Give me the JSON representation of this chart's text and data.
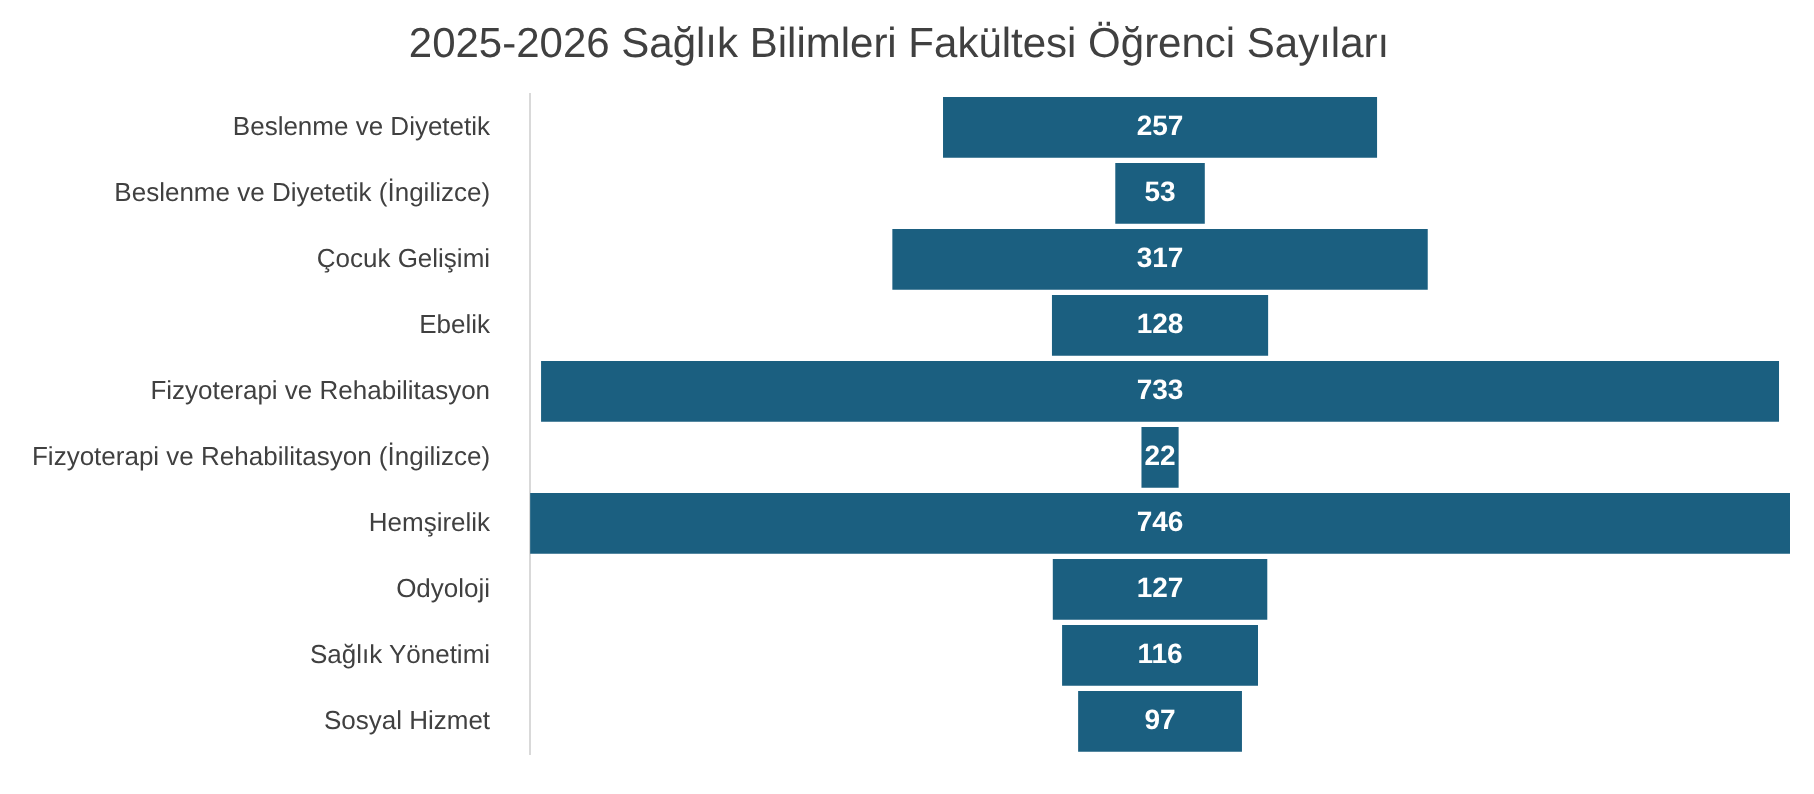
{
  "chart_data": {
    "type": "other",
    "title": "2025-2026 Sağlık Bilimleri Fakültesi Öğrenci Sayıları",
    "categories": [
      "Beslenme ve Diyetetik",
      "Beslenme ve Diyetetik (İngilizce)",
      "Çocuk Gelişimi",
      "Ebelik",
      "Fizyoterapi ve Rehabilitasyon",
      "Fizyoterapi ve Rehabilitasyon (İngilizce)",
      "Hemşirelik",
      "Odyoloji",
      "Sağlık Yönetimi",
      "Sosyal Hizmet"
    ],
    "values": [
      257,
      53,
      317,
      128,
      733,
      22,
      746,
      127,
      116,
      97
    ],
    "color": "#1b5f80",
    "data_labels": true,
    "legend": false
  }
}
